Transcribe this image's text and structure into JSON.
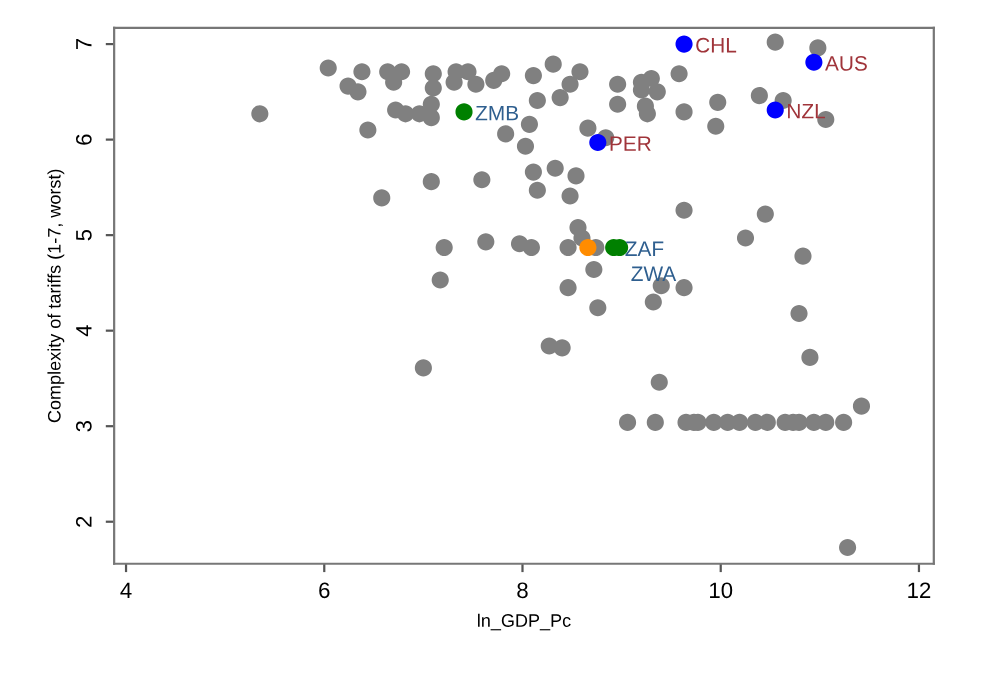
{
  "chart_data": {
    "type": "scatter",
    "xlabel": "ln_GDP_Pc",
    "ylabel": "Complexity of tariffs (1-7, worst)",
    "xlim": [
      3.88,
      12.15
    ],
    "ylim": [
      1.56,
      7.17
    ],
    "xticks": [
      4,
      6,
      8,
      10,
      12
    ],
    "yticks": [
      2,
      3,
      4,
      5,
      6,
      7
    ],
    "grid": false,
    "legend": false,
    "marker": "circle",
    "series": [
      {
        "color": "#808080",
        "x": [
          6.04,
          6.38,
          6.24,
          6.34,
          6.64,
          6.78,
          6.7,
          7.1,
          7.1,
          7.33,
          7.45,
          7.31,
          7.53,
          7.71,
          7.79,
          8.11,
          8.31,
          5.35,
          6.72,
          6.82,
          6.96,
          7.08,
          7.08,
          8.15,
          8.07,
          7.83,
          8.03,
          6.44,
          7.08,
          7.59,
          8.11,
          8.15,
          8.33,
          6.58,
          7.21,
          7.63,
          7.97,
          8.09,
          7.17,
          10.55,
          10.98,
          8.58,
          8.48,
          8.38,
          8.96,
          8.96,
          9.2,
          9.3,
          9.2,
          9.36,
          9.24,
          9.26,
          9.58,
          9.63,
          9.97,
          9.95,
          10.39,
          10.63,
          11.06,
          8.66,
          8.84,
          8.54,
          8.48,
          9.63,
          10.45,
          10.25,
          8.56,
          8.6,
          8.46,
          8.74,
          8.72,
          8.46,
          9.4,
          9.63,
          8.76,
          9.32,
          10.83,
          10.79,
          8.27,
          8.4,
          10.9,
          9.38,
          11.42,
          7.0,
          9.06,
          9.34,
          9.65,
          9.73,
          9.77,
          9.93,
          10.07,
          10.19,
          10.35,
          10.47,
          10.65,
          10.73,
          10.79,
          10.94,
          11.06,
          11.24,
          11.28
        ],
        "values": [
          6.75,
          6.71,
          6.56,
          6.5,
          6.71,
          6.71,
          6.6,
          6.69,
          6.54,
          6.71,
          6.71,
          6.6,
          6.58,
          6.62,
          6.69,
          6.67,
          6.79,
          6.27,
          6.31,
          6.27,
          6.27,
          6.37,
          6.23,
          6.41,
          6.16,
          6.06,
          5.93,
          6.1,
          5.56,
          5.58,
          5.66,
          5.47,
          5.7,
          5.39,
          4.87,
          4.93,
          4.91,
          4.87,
          4.53,
          7.02,
          6.96,
          6.71,
          6.58,
          6.44,
          6.58,
          6.37,
          6.6,
          6.64,
          6.52,
          6.5,
          6.35,
          6.27,
          6.69,
          6.29,
          6.39,
          6.14,
          6.46,
          6.41,
          6.21,
          6.12,
          6.02,
          5.62,
          5.41,
          5.26,
          5.22,
          4.97,
          5.08,
          4.97,
          4.87,
          4.87,
          4.64,
          4.45,
          4.47,
          4.45,
          4.24,
          4.3,
          4.78,
          4.18,
          3.84,
          3.82,
          3.72,
          3.46,
          3.21,
          3.61,
          3.04,
          3.04,
          3.04,
          3.04,
          3.04,
          3.04,
          3.04,
          3.04,
          3.04,
          3.04,
          3.04,
          3.04,
          3.04,
          3.04,
          3.04,
          3.04,
          1.73
        ]
      },
      {
        "color": "#0000ff",
        "x": [
          9.63,
          10.94,
          10.55,
          8.76
        ],
        "values": [
          7.0,
          6.81,
          6.31,
          5.97
        ],
        "value_labels": [
          "CHL",
          "AUS",
          "NZL",
          "PER"
        ]
      },
      {
        "color": "#008000",
        "x": [
          7.41,
          8.92,
          8.98
        ],
        "values": [
          6.29,
          4.87,
          4.87
        ],
        "value_labels": [
          "ZMB",
          "ZAF",
          "ZWA"
        ]
      },
      {
        "color": "#ff8c00",
        "x": [
          8.66
        ],
        "values": [
          4.87
        ]
      }
    ]
  }
}
